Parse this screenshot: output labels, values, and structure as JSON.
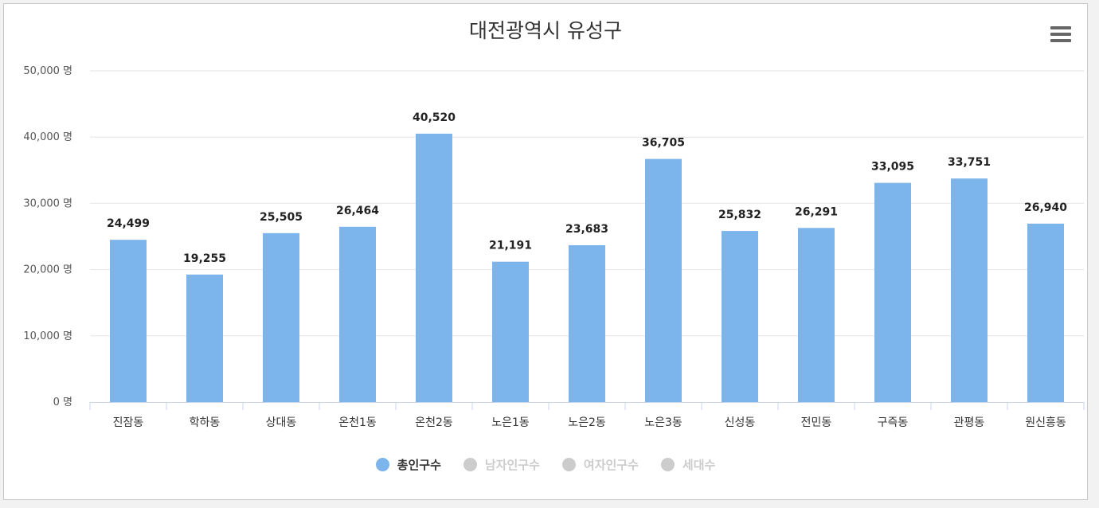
{
  "chart_data": {
    "type": "bar",
    "title": "대전광역시 유성구",
    "categories": [
      "진잠동",
      "학하동",
      "상대동",
      "온천1동",
      "온천2동",
      "노은1동",
      "노은2동",
      "노은3동",
      "신성동",
      "전민동",
      "구즉동",
      "관평동",
      "원신흥동"
    ],
    "series": [
      {
        "name": "총인구수",
        "values": [
          24499,
          19255,
          25505,
          26464,
          40520,
          21191,
          23683,
          36705,
          25832,
          26291,
          33095,
          33751,
          26940
        ],
        "active": true
      }
    ],
    "value_labels": [
      "24,499",
      "19,255",
      "25,505",
      "26,464",
      "40,520",
      "21,191",
      "23,683",
      "36,705",
      "25,832",
      "26,291",
      "33,095",
      "33,751",
      "26,940"
    ],
    "ylim": [
      0,
      50000
    ],
    "yticks": [
      0,
      10000,
      20000,
      30000,
      40000,
      50000
    ],
    "ytick_labels": [
      "0 명",
      "10,000 명",
      "20,000 명",
      "30,000 명",
      "40,000 명",
      "50,000 명"
    ],
    "grid": true,
    "legend_position": "bottom-center",
    "colors": {
      "bar": "#7cb5ec",
      "inactive_legend": "#cccccc",
      "grid": "#e6e6e6"
    }
  },
  "legend": [
    {
      "label": "총인구수",
      "active": true
    },
    {
      "label": "남자인구수",
      "active": false
    },
    {
      "label": "여자인구수",
      "active": false
    },
    {
      "label": "세대수",
      "active": false
    }
  ],
  "menu_icon": "hamburger-menu-icon"
}
